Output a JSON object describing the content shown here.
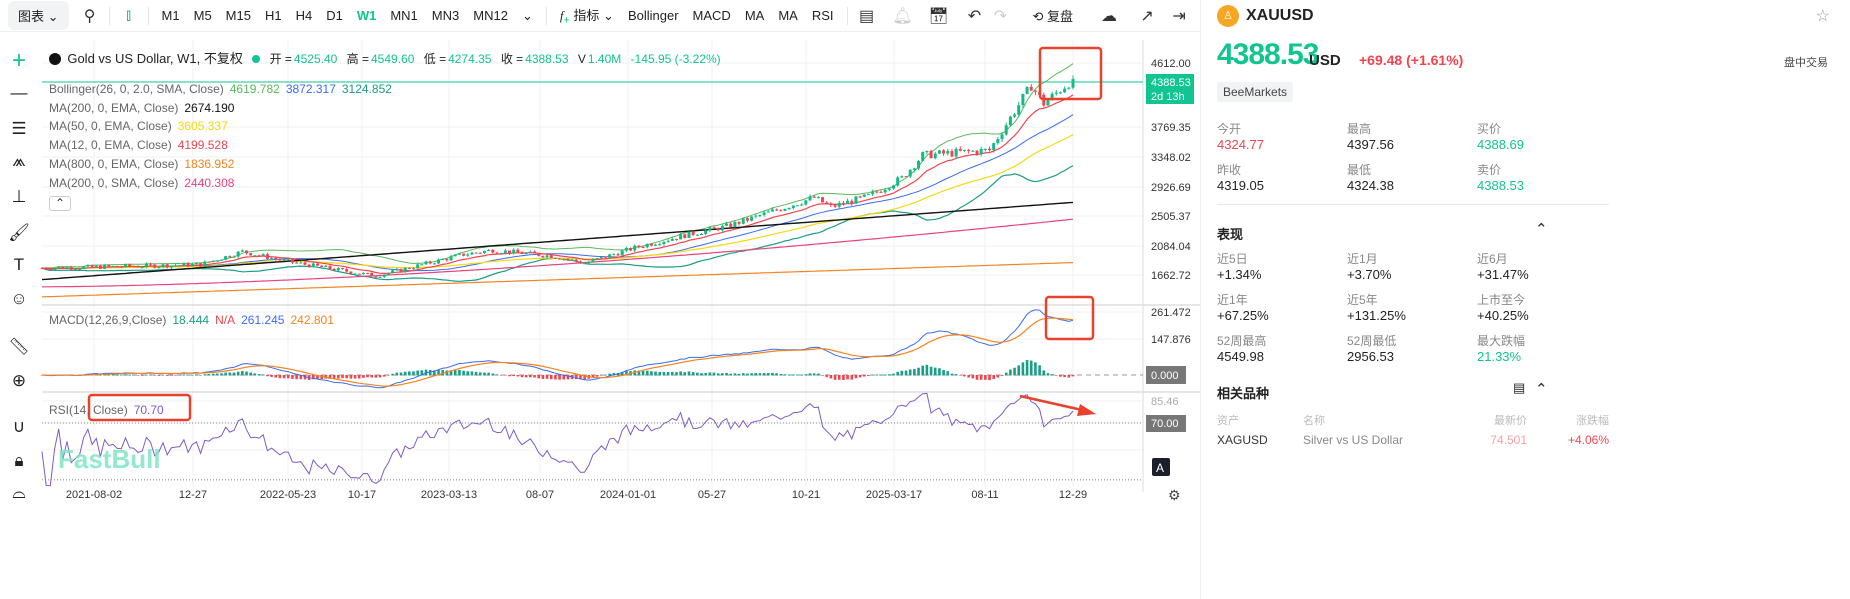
{
  "toolbar": {
    "chart_menu": "图表",
    "timeframes": [
      "M1",
      "M5",
      "M15",
      "H1",
      "H4",
      "D1",
      "W1",
      "MN1",
      "MN3",
      "MN12"
    ],
    "active_timeframe": "W1",
    "indicators_label": "指标",
    "quick_indicators": [
      "Bollinger",
      "MACD",
      "MA",
      "MA",
      "RSI"
    ],
    "replay_label": "复盘"
  },
  "legend": {
    "symbol_title": "Gold vs US Dollar, W1, 不复权",
    "open_label": "开 =",
    "open": "4525.40",
    "high_label": "高 =",
    "high": "4549.60",
    "low_label": "低 =",
    "low": "4274.35",
    "close_label": "收 =",
    "close": "4388.53",
    "volume_label": "V",
    "volume": "1.40M",
    "change": "-145.95 (-3.22%)",
    "indicators": [
      {
        "name": "Bollinger(26, 0, 2.0, SMA, Close)",
        "values": [
          {
            "v": "4619.782",
            "c": "#5cb85c"
          },
          {
            "v": "3872.317",
            "c": "#3a6cf0"
          },
          {
            "v": "3124.852",
            "c": "#1a9e86"
          }
        ]
      },
      {
        "name": "MA(200, 0, EMA, Close)",
        "values": [
          {
            "v": "2674.190",
            "c": "#111111"
          }
        ]
      },
      {
        "name": "MA(50, 0, EMA, Close)",
        "values": [
          {
            "v": "3605.337",
            "c": "#f5d90a"
          }
        ]
      },
      {
        "name": "MA(12, 0, EMA, Close)",
        "values": [
          {
            "v": "4199.528",
            "c": "#f0454f"
          }
        ]
      },
      {
        "name": "MA(800, 0, EMA, Close)",
        "values": [
          {
            "v": "1836.952",
            "c": "#f5831f"
          }
        ]
      },
      {
        "name": "MA(200, 0, SMA, Close)",
        "values": [
          {
            "v": "2440.308",
            "c": "#e8437a"
          }
        ]
      }
    ],
    "macd": {
      "name": "MACD(12,26,9,Close)",
      "hist": "18.444",
      "na": "N/A",
      "macd": "261.245",
      "signal": "242.801"
    },
    "rsi": {
      "name": "RSI(14, Close)",
      "value": "70.70"
    }
  },
  "price_axis": {
    "ticks": [
      "4612.00",
      "3769.35",
      "3348.02",
      "2926.69",
      "2505.37",
      "2084.04",
      "1662.72"
    ],
    "last_price": "4388.53",
    "countdown": "2d 13h",
    "macd_ticks": [
      "261.472",
      "147.876"
    ],
    "macd_zero": "0.000",
    "rsi_ticks": [
      "85.46"
    ],
    "rsi_level": "70.00",
    "auto_label": "A"
  },
  "time_axis": [
    "2021-08-02",
    "12-27",
    "2022-05-23",
    "10-17",
    "2023-03-13",
    "08-07",
    "2024-01-01",
    "05-27",
    "10-21",
    "2025-03-17",
    "08-11",
    "12-29"
  ],
  "watermark": "FastBull",
  "chart_data": {
    "type": "candlestick",
    "interval": "W1",
    "price_anchors": [
      [
        "2021-04-05",
        1760
      ],
      [
        "2021-08-02",
        1780
      ],
      [
        "2021-12-27",
        1810
      ],
      [
        "2022-03-07",
        1990
      ],
      [
        "2022-05-23",
        1850
      ],
      [
        "2022-10-17",
        1650
      ],
      [
        "2023-03-13",
        1950
      ],
      [
        "2023-05-01",
        2010
      ],
      [
        "2023-08-07",
        1930
      ],
      [
        "2023-10-02",
        1830
      ],
      [
        "2024-01-01",
        2060
      ],
      [
        "2024-03-25",
        2230
      ],
      [
        "2024-05-27",
        2340
      ],
      [
        "2024-10-21",
        2740
      ],
      [
        "2024-11-18",
        2610
      ],
      [
        "2025-01-20",
        2760
      ],
      [
        "2025-03-17",
        3010
      ],
      [
        "2025-04-21",
        3330
      ],
      [
        "2025-08-11",
        3400
      ],
      [
        "2025-10-20",
        4300
      ],
      [
        "2025-11-10",
        4050
      ],
      [
        "2025-12-29",
        4388.53
      ]
    ],
    "colors": {
      "up": "#13b987",
      "down": "#f0454f"
    }
  },
  "panel": {
    "symbol": "XAUUSD",
    "price": "4388.53",
    "currency": "USD",
    "change": "+69.48",
    "change_pct": "(+1.61%)",
    "session": "盘中交易",
    "broker": "BeeMarkets",
    "stats": [
      {
        "label": "今开",
        "value": "4324.77",
        "color": "r"
      },
      {
        "label": "最高",
        "value": "4397.56",
        "color": ""
      },
      {
        "label": "买价",
        "value": "4388.69",
        "color": "g"
      },
      {
        "label": "昨收",
        "value": "4319.05",
        "color": ""
      },
      {
        "label": "最低",
        "value": "4324.38",
        "color": ""
      },
      {
        "label": "卖价",
        "value": "4388.53",
        "color": "g"
      }
    ],
    "performance_title": "表现",
    "performance": [
      {
        "label": "近5日",
        "value": "+1.34%",
        "color": ""
      },
      {
        "label": "近1月",
        "value": "+3.70%",
        "color": ""
      },
      {
        "label": "近6月",
        "value": "+31.47%",
        "color": ""
      },
      {
        "label": "近1年",
        "value": "+67.25%",
        "color": ""
      },
      {
        "label": "近5年",
        "value": "+131.25%",
        "color": ""
      },
      {
        "label": "上市至今",
        "value": "+40.25%",
        "color": ""
      },
      {
        "label": "52周最高",
        "value": "4549.98",
        "color": ""
      },
      {
        "label": "52周最低",
        "value": "2956.53",
        "color": ""
      },
      {
        "label": "最大跌幅",
        "value": "21.33%",
        "color": "g"
      }
    ],
    "related_title": "相关品种",
    "related_headers": [
      "资产",
      "名称",
      "最新价",
      "涨跌幅"
    ],
    "related": [
      {
        "asset": "XAGUSD",
        "name": "Silver vs US Dollar",
        "price": "74.501",
        "change": "+4.06%"
      }
    ]
  }
}
